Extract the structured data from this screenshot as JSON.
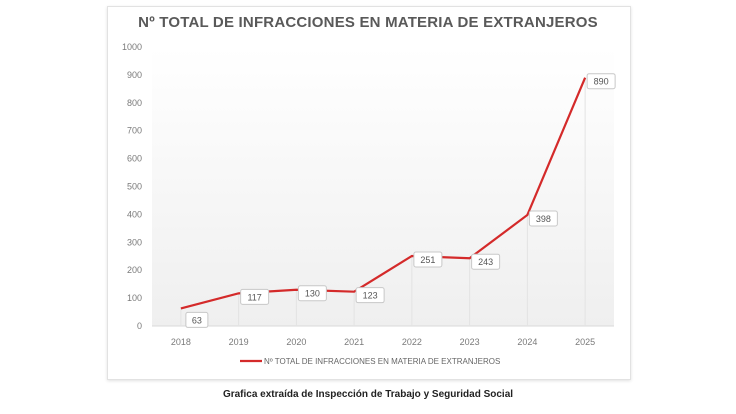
{
  "chart_data": {
    "type": "line",
    "title": "Nº TOTAL DE INFRACCIONES  EN MATERIA DE EXTRANJEROS",
    "categories": [
      "2018",
      "2019",
      "2020",
      "2021",
      "2022",
      "2023",
      "2024",
      "2025"
    ],
    "series": [
      {
        "name": "Nº TOTAL DE INFRACCIONES EN MATERIA DE EXTRANJEROS",
        "values": [
          63,
          117,
          130,
          123,
          251,
          243,
          398,
          890
        ],
        "color": "#d42a2a"
      }
    ],
    "ylim": [
      0,
      1000
    ],
    "yticks": [
      "0",
      "100",
      "200",
      "300",
      "400",
      "500",
      "600",
      "700",
      "800",
      "900",
      "1000"
    ],
    "xlabel": "",
    "ylabel": "",
    "grid": false,
    "legend": "bottom",
    "data_labels": true
  },
  "caption": "Grafica extraída de Inspección de Trabajo y Seguridad Social"
}
